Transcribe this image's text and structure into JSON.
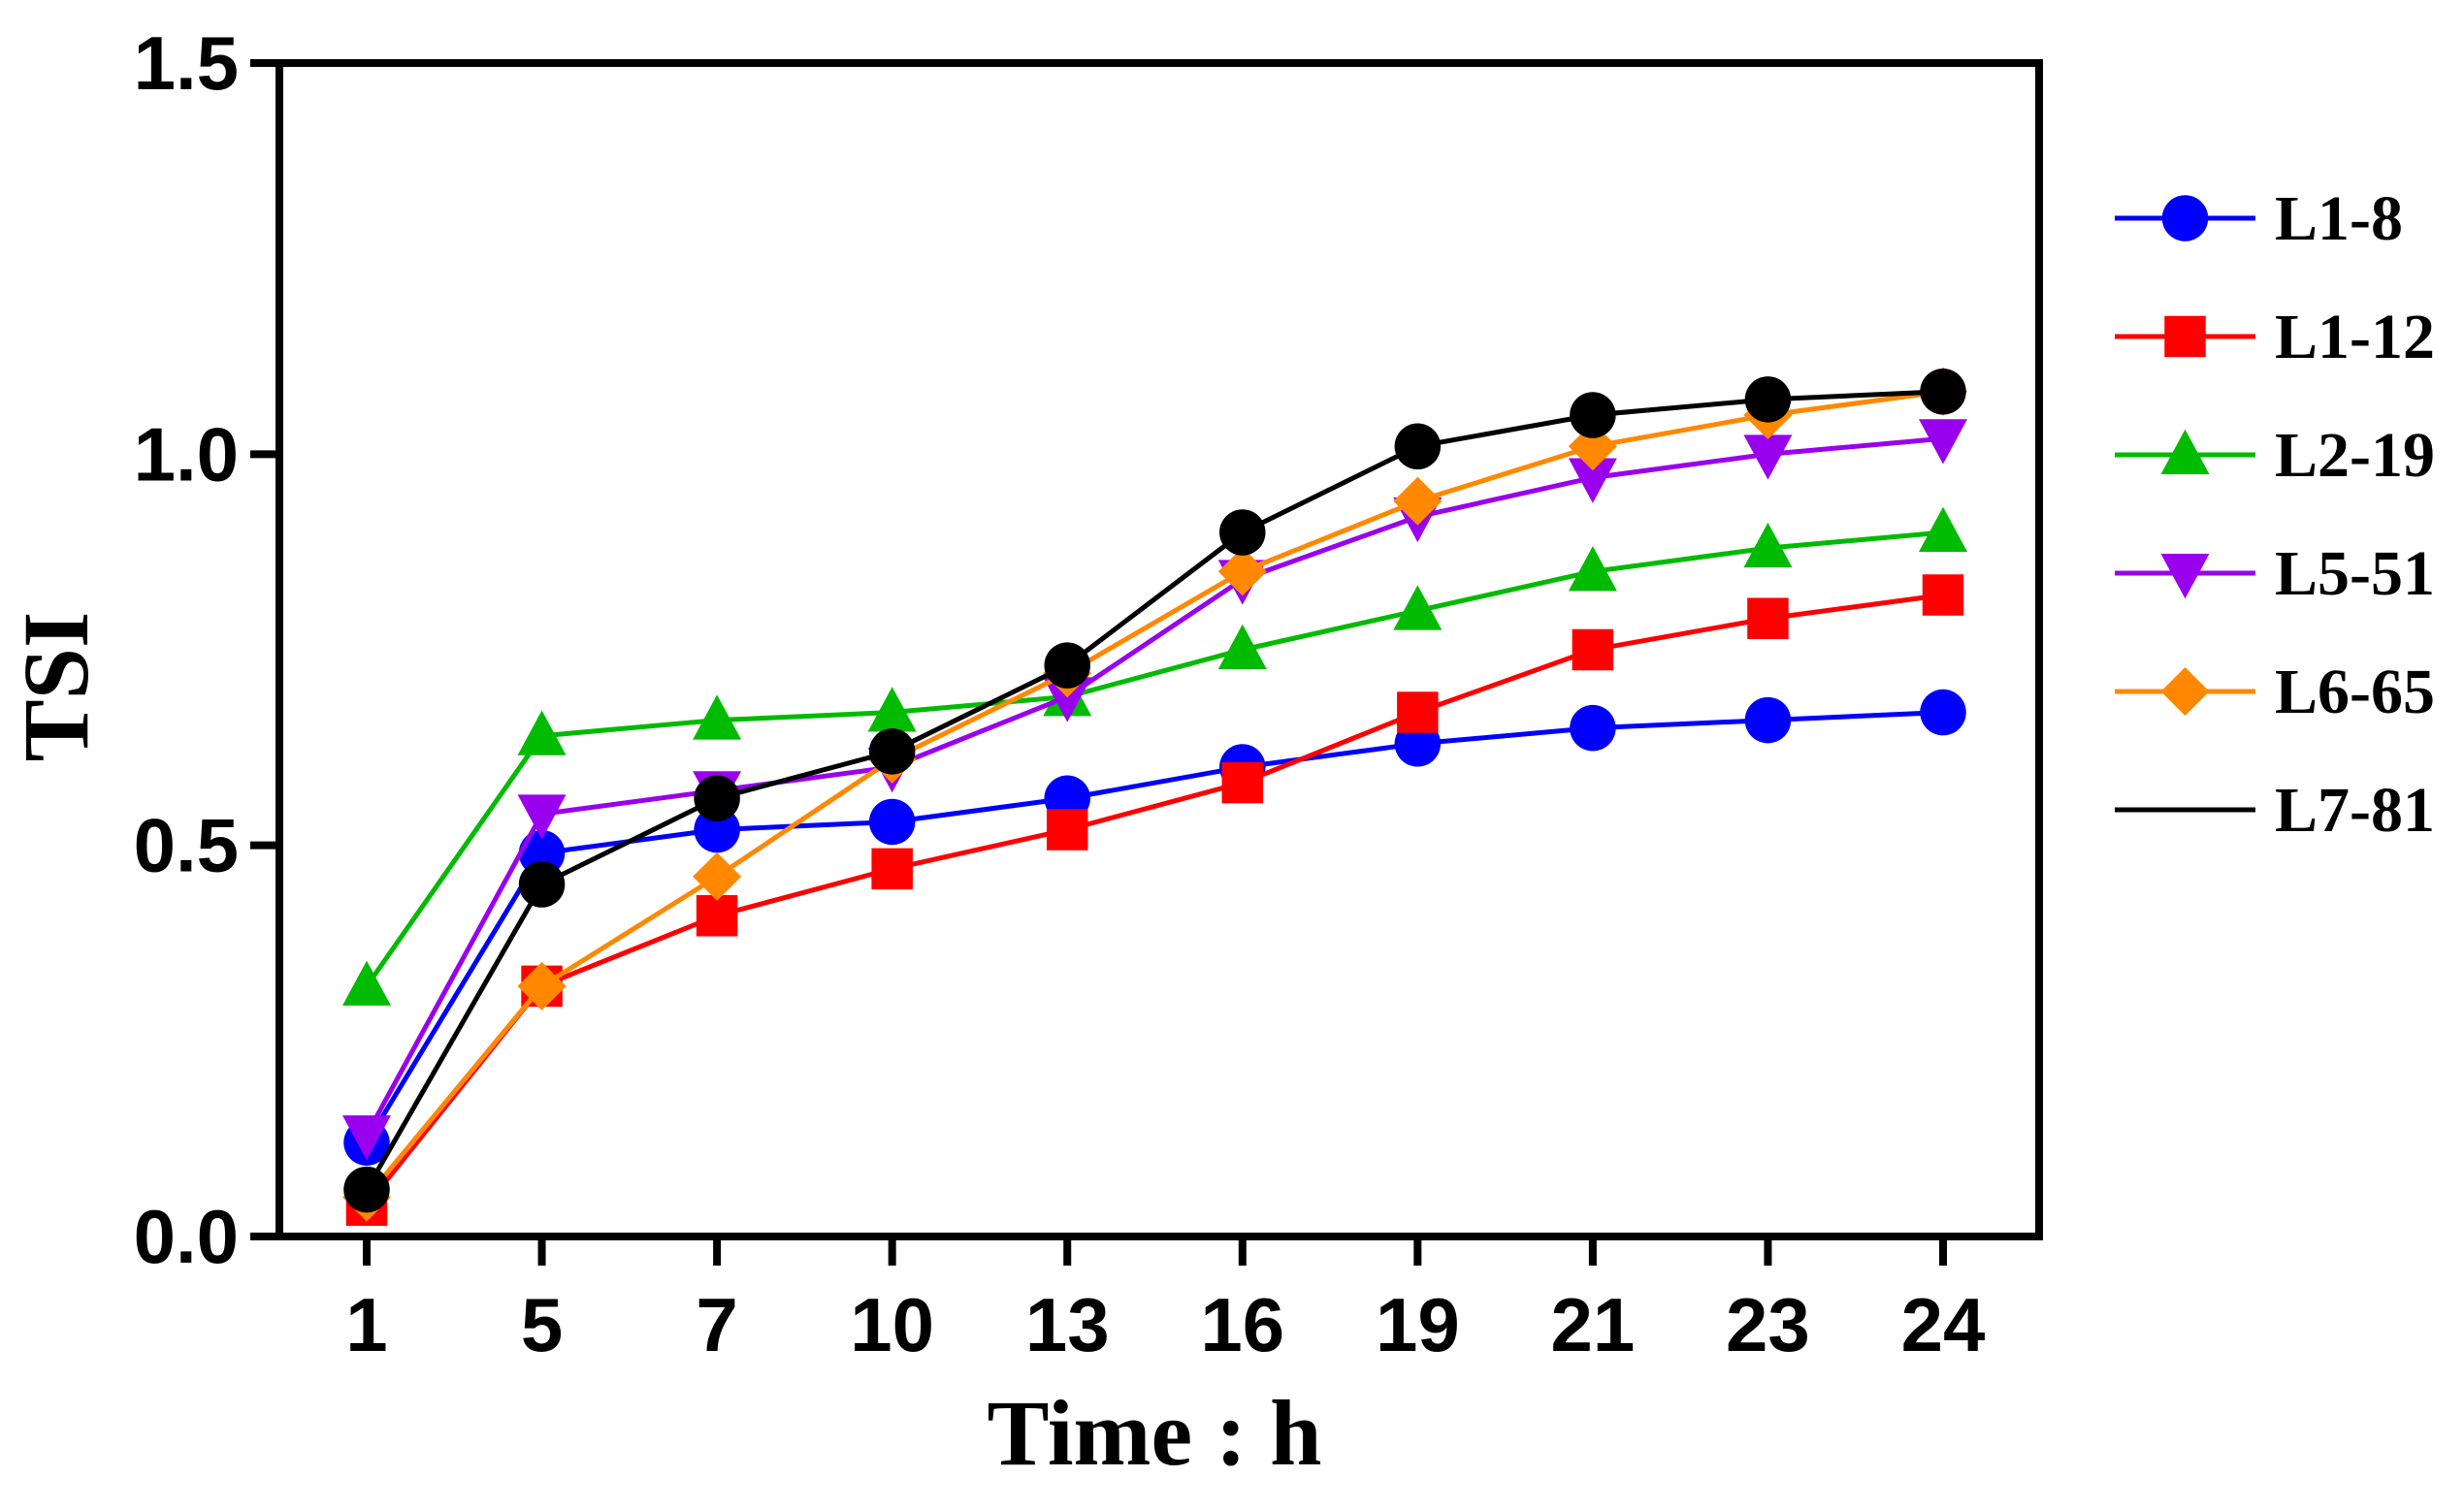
{
  "chart_data": {
    "type": "line",
    "title": "",
    "xlabel": "Time : h",
    "ylabel": "TSI",
    "categories": [
      "1",
      "5",
      "7",
      "10",
      "13",
      "16",
      "19",
      "21",
      "23",
      "24"
    ],
    "ylim": [
      0,
      1.5
    ],
    "yticks": [
      "0.0",
      "0.5",
      "1.0",
      "1.5"
    ],
    "ytick_values": [
      0,
      0.5,
      1.0,
      1.5
    ],
    "legend_position": "right",
    "series": [
      {
        "name": "L1-8",
        "color": "#0000ff",
        "marker": "circle",
        "values": [
          0.12,
          0.49,
          0.52,
          0.53,
          0.56,
          0.6,
          0.63,
          0.65,
          0.66,
          0.67
        ]
      },
      {
        "name": "L1-12",
        "color": "#ff0000",
        "marker": "square",
        "values": [
          0.04,
          0.32,
          0.41,
          0.47,
          0.52,
          0.58,
          0.67,
          0.75,
          0.79,
          0.82
        ]
      },
      {
        "name": "L2-19",
        "color": "#00bb00",
        "marker": "triangle-up",
        "values": [
          0.32,
          0.64,
          0.66,
          0.67,
          0.69,
          0.75,
          0.8,
          0.85,
          0.88,
          0.9
        ]
      },
      {
        "name": "L5-51",
        "color": "#9900ee",
        "marker": "triangle-down",
        "values": [
          0.13,
          0.54,
          0.57,
          0.6,
          0.69,
          0.84,
          0.92,
          0.97,
          1.0,
          1.02
        ]
      },
      {
        "name": "L6-65",
        "color": "#ff8800",
        "marker": "diamond",
        "values": [
          0.05,
          0.32,
          0.46,
          0.61,
          0.72,
          0.85,
          0.94,
          1.01,
          1.05,
          1.08
        ]
      },
      {
        "name": "L7-81",
        "color": "#000000",
        "marker": "circle",
        "values": [
          0.06,
          0.45,
          0.56,
          0.62,
          0.73,
          0.9,
          1.01,
          1.05,
          1.07,
          1.08
        ]
      }
    ]
  }
}
